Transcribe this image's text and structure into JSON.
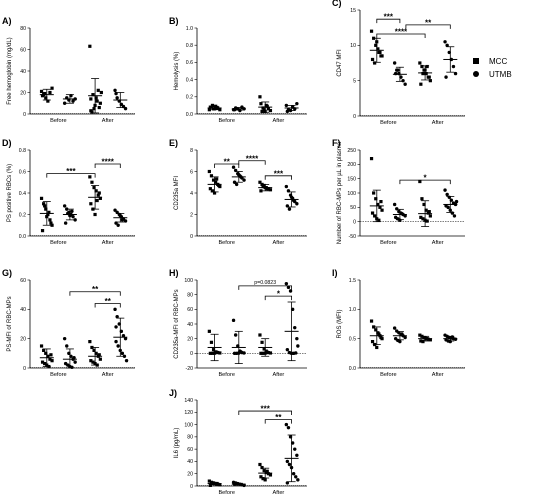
{
  "legend": {
    "items": [
      {
        "label": "MCC",
        "marker": "square"
      },
      {
        "label": "UTMB",
        "marker": "circle"
      }
    ]
  },
  "chart_data": [
    {
      "panel": "A)",
      "type": "scatter",
      "ylabel": "Free hemoglobin (mg/dL)",
      "ylim": [
        0,
        80
      ],
      "yticks": [
        0,
        20,
        40,
        60,
        80
      ],
      "categories": [
        "Before",
        "After"
      ],
      "series": [
        {
          "name": "MCC",
          "marker": "square",
          "group": "Before",
          "mean": 18,
          "sd": 5,
          "points": [
            21,
            18,
            15,
            12,
            20,
            24,
            17,
            19
          ]
        },
        {
          "name": "UTMB",
          "marker": "circle",
          "group": "Before",
          "mean": 14,
          "sd": 4,
          "points": [
            10,
            15,
            13,
            17,
            12,
            14
          ]
        },
        {
          "name": "MCC",
          "marker": "square",
          "group": "After",
          "mean": 17,
          "sd": 16,
          "points": [
            63,
            2,
            5,
            15,
            22,
            10,
            3,
            18,
            8,
            12,
            6,
            20,
            14
          ]
        },
        {
          "name": "UTMB",
          "marker": "circle",
          "group": "After",
          "mean": 13,
          "sd": 7,
          "points": [
            22,
            15,
            12,
            9,
            7,
            5,
            19
          ]
        }
      ],
      "comparisons": []
    },
    {
      "panel": "B)",
      "type": "scatter",
      "ylabel": "Hemolysis (%)",
      "ylim": [
        0,
        1
      ],
      "yticks": [
        0,
        0.2,
        0.4,
        0.6,
        0.8,
        1.0
      ],
      "ytick_labels": [
        "0.0",
        "0.2",
        "0.4",
        "0.6",
        "0.8",
        "1.0"
      ],
      "categories": [
        "Before",
        "After"
      ],
      "series": [
        {
          "name": "MCC",
          "marker": "square",
          "group": "Before",
          "mean": 0.07,
          "sd": 0.02,
          "points": [
            0.05,
            0.08,
            0.06,
            0.09,
            0.07,
            0.05,
            0.08,
            0.1,
            0.06,
            0.07
          ]
        },
        {
          "name": "UTMB",
          "marker": "circle",
          "group": "Before",
          "mean": 0.06,
          "sd": 0.015,
          "points": [
            0.05,
            0.07,
            0.06,
            0.04,
            0.08,
            0.06,
            0.05
          ]
        },
        {
          "name": "MCC",
          "marker": "square",
          "group": "After",
          "mean": 0.08,
          "sd": 0.06,
          "points": [
            0.2,
            0.03,
            0.05,
            0.1,
            0.06,
            0.04,
            0.12,
            0.07,
            0.03,
            0.09
          ]
        },
        {
          "name": "UTMB",
          "marker": "circle",
          "group": "After",
          "mean": 0.07,
          "sd": 0.03,
          "points": [
            0.1,
            0.05,
            0.04,
            0.08,
            0.06,
            0.12,
            0.03
          ]
        }
      ],
      "comparisons": []
    },
    {
      "panel": "C)",
      "type": "scatter",
      "ylabel": "CD47 MFI",
      "ylim": [
        0,
        15
      ],
      "yticks": [
        0,
        5,
        10,
        15
      ],
      "categories": [
        "Before",
        "After"
      ],
      "series": [
        {
          "name": "MCC",
          "marker": "square",
          "group": "Before",
          "mean": 9.3,
          "sd": 1.7,
          "points": [
            12,
            11,
            10,
            9.5,
            9,
            8.5,
            8,
            7.5,
            10.5,
            9,
            8.5
          ]
        },
        {
          "name": "UTMB",
          "marker": "circle",
          "group": "Before",
          "mean": 5.9,
          "sd": 1,
          "points": [
            7.5,
            6.5,
            6,
            5.5,
            5,
            4.5,
            6,
            6.5
          ]
        },
        {
          "name": "MCC",
          "marker": "square",
          "group": "After",
          "mean": 6.1,
          "sd": 1,
          "points": [
            7.5,
            7,
            6.5,
            6,
            5.5,
            5,
            4.5,
            6,
            6.5,
            7,
            5.5
          ]
        },
        {
          "name": "UTMB",
          "marker": "circle",
          "group": "After",
          "mean": 8,
          "sd": 1.8,
          "points": [
            10.5,
            10,
            9,
            8,
            7,
            6,
            5.5
          ]
        }
      ],
      "comparisons": [
        {
          "from": 0,
          "to": 1,
          "label": "***",
          "y": 13.7
        },
        {
          "from": 0,
          "to": 2,
          "label": "****",
          "y": 11.6
        },
        {
          "from": 1.15,
          "to": 3,
          "label": "**",
          "y": 12.9
        }
      ]
    },
    {
      "panel": "D)",
      "type": "scatter",
      "ylabel": "PS positive RBCs (%)",
      "ylim": [
        0,
        0.8
      ],
      "yticks": [
        0,
        0.2,
        0.4,
        0.6,
        0.8
      ],
      "ytick_labels": [
        "0.0",
        "0.2",
        "0.4",
        "0.6",
        "0.8"
      ],
      "categories": [
        "Before",
        "After"
      ],
      "series": [
        {
          "name": "MCC",
          "marker": "square",
          "group": "Before",
          "mean": 0.21,
          "sd": 0.11,
          "points": [
            0.35,
            0.3,
            0.25,
            0.2,
            0.15,
            0.1,
            0.05,
            0.28,
            0.18,
            0.22,
            0.12
          ]
        },
        {
          "name": "UTMB",
          "marker": "circle",
          "group": "Before",
          "mean": 0.2,
          "sd": 0.05,
          "points": [
            0.28,
            0.25,
            0.22,
            0.2,
            0.18,
            0.15,
            0.12,
            0.21,
            0.19,
            0.23
          ]
        },
        {
          "name": "MCC",
          "marker": "square",
          "group": "After",
          "mean": 0.36,
          "sd": 0.11,
          "points": [
            0.55,
            0.5,
            0.45,
            0.42,
            0.38,
            0.35,
            0.3,
            0.25,
            0.2,
            0.33,
            0.4
          ]
        },
        {
          "name": "UTMB",
          "marker": "circle",
          "group": "After",
          "mean": 0.17,
          "sd": 0.04,
          "points": [
            0.24,
            0.22,
            0.2,
            0.18,
            0.16,
            0.14,
            0.12,
            0.1,
            0.19,
            0.15
          ]
        }
      ],
      "comparisons": [
        {
          "from": 0,
          "to": 2,
          "label": "***",
          "y": 0.58
        },
        {
          "from": 2,
          "to": 3,
          "label": "****",
          "y": 0.67
        }
      ]
    },
    {
      "panel": "E)",
      "type": "scatter",
      "ylabel": "CD235a MFI",
      "ylim": [
        0,
        8
      ],
      "yticks": [
        0,
        2,
        4,
        6,
        8
      ],
      "categories": [
        "Before",
        "After"
      ],
      "series": [
        {
          "name": "MCC",
          "marker": "square",
          "group": "Before",
          "mean": 4.8,
          "sd": 0.7,
          "points": [
            6,
            5.6,
            5.2,
            5,
            4.8,
            4.6,
            4.4,
            4.2,
            4,
            5.3,
            4.7
          ]
        },
        {
          "name": "UTMB",
          "marker": "circle",
          "group": "Before",
          "mean": 5.5,
          "sd": 0.5,
          "points": [
            6.4,
            6.1,
            5.8,
            5.6,
            5.4,
            5.2,
            5,
            4.8,
            5.7,
            5.5
          ]
        },
        {
          "name": "MCC",
          "marker": "square",
          "group": "After",
          "mean": 4.5,
          "sd": 0.3,
          "points": [
            5,
            4.8,
            4.7,
            4.5,
            4.4,
            4.3,
            4.2,
            4.6,
            4.5,
            4.4
          ]
        },
        {
          "name": "UTMB",
          "marker": "circle",
          "group": "After",
          "mean": 3.4,
          "sd": 0.7,
          "points": [
            4.6,
            4.2,
            3.8,
            3.5,
            3.2,
            3,
            2.8,
            2.5,
            3.6,
            3.3
          ]
        }
      ],
      "comparisons": [
        {
          "from": 0,
          "to": 1,
          "label": "**",
          "y": 6.7
        },
        {
          "from": 1,
          "to": 2,
          "label": "****",
          "y": 7.0
        },
        {
          "from": 2,
          "to": 3,
          "label": "***",
          "y": 5.6
        }
      ]
    },
    {
      "panel": "F)",
      "type": "scatter",
      "ylabel": "Number of RBC-MPs per µL in plasma",
      "ylim": [
        -50,
        250
      ],
      "yticks": [
        -50,
        0,
        50,
        100,
        150,
        200,
        250
      ],
      "categories": [
        "Before",
        "After"
      ],
      "series": [
        {
          "name": "MCC",
          "marker": "square",
          "group": "Before",
          "mean": 55,
          "sd": 55,
          "points": [
            220,
            100,
            80,
            60,
            50,
            40,
            30,
            20,
            10,
            5,
            70
          ]
        },
        {
          "name": "UTMB",
          "marker": "circle",
          "group": "Before",
          "mean": 25,
          "sd": 18,
          "points": [
            60,
            45,
            35,
            30,
            25,
            20,
            15,
            10,
            5,
            28
          ]
        },
        {
          "name": "MCC",
          "marker": "square",
          "group": "After",
          "mean": 28,
          "sd": 45,
          "points": [
            140,
            80,
            60,
            40,
            30,
            20,
            15,
            10,
            5,
            2,
            35
          ]
        },
        {
          "name": "UTMB",
          "marker": "circle",
          "group": "After",
          "mean": 60,
          "sd": 28,
          "points": [
            110,
            95,
            85,
            75,
            65,
            60,
            55,
            50,
            40,
            30,
            20,
            70
          ]
        }
      ],
      "comparisons": [
        {
          "from": 1,
          "to": 3,
          "label": "*",
          "y": 145
        }
      ]
    },
    {
      "panel": "G)",
      "type": "scatter",
      "ylabel": "PS-MFI of RBC-MPs",
      "ylim": [
        0,
        60
      ],
      "yticks": [
        0,
        20,
        40,
        60
      ],
      "categories": [
        "Before",
        "After"
      ],
      "series": [
        {
          "name": "MCC",
          "marker": "square",
          "group": "Before",
          "mean": 7,
          "sd": 6,
          "points": [
            15,
            12,
            10,
            8,
            6,
            5,
            4,
            3,
            2,
            1,
            9
          ]
        },
        {
          "name": "UTMB",
          "marker": "circle",
          "group": "Before",
          "mean": 6,
          "sd": 7,
          "points": [
            20,
            15,
            10,
            8,
            6,
            4,
            3,
            2,
            1,
            0.5,
            7
          ]
        },
        {
          "name": "MCC",
          "marker": "square",
          "group": "After",
          "mean": 8,
          "sd": 6,
          "points": [
            18,
            14,
            12,
            10,
            8,
            6,
            5,
            4,
            3,
            2,
            9
          ]
        },
        {
          "name": "UTMB",
          "marker": "circle",
          "group": "After",
          "mean": 21,
          "sd": 13,
          "points": [
            40,
            35,
            30,
            25,
            22,
            20,
            18,
            15,
            12,
            10,
            8,
            5,
            28
          ]
        }
      ],
      "comparisons": [
        {
          "from": 1,
          "to": 3,
          "label": "**",
          "y": 52
        },
        {
          "from": 2,
          "to": 3,
          "label": "**",
          "y": 44
        }
      ]
    },
    {
      "panel": "H)",
      "type": "scatter",
      "ylabel": "CD235a-MFI of RBC-MPs",
      "ylim": [
        -20,
        100
      ],
      "yticks": [
        -20,
        0,
        20,
        40,
        60,
        80,
        100
      ],
      "categories": [
        "Before",
        "After"
      ],
      "series": [
        {
          "name": "MCC",
          "marker": "square",
          "group": "Before",
          "mean": 8,
          "sd": 18,
          "points": [
            30,
            15,
            5,
            2,
            1,
            0.5,
            0,
            0,
            0.2,
            1.5
          ]
        },
        {
          "name": "UTMB",
          "marker": "circle",
          "group": "Before",
          "mean": 8,
          "sd": 22,
          "points": [
            45,
            25,
            10,
            3,
            1,
            0.5,
            0,
            0,
            0.3,
            2
          ]
        },
        {
          "name": "MCC",
          "marker": "square",
          "group": "After",
          "mean": 8,
          "sd": 12,
          "points": [
            25,
            15,
            6,
            3,
            1,
            0.5,
            0,
            0,
            0.2,
            1.5
          ]
        },
        {
          "name": "UTMB",
          "marker": "circle",
          "group": "After",
          "mean": 30,
          "sd": 40,
          "points": [
            95,
            90,
            85,
            60,
            35,
            20,
            5,
            1,
            0,
            0,
            0.5,
            10
          ]
        }
      ],
      "comparisons": [
        {
          "from": 1,
          "to": 3,
          "label": "p=0.0823",
          "y": 92
        },
        {
          "from": 2,
          "to": 3,
          "label": "*",
          "y": 78
        }
      ]
    },
    {
      "panel": "I)",
      "type": "scatter",
      "ylabel": "ROS (MFI)",
      "ylim": [
        0,
        1.5
      ],
      "yticks": [
        0,
        0.5,
        1.0,
        1.5
      ],
      "ytick_labels": [
        "0.0",
        "0.5",
        "1.0",
        "1.5"
      ],
      "categories": [
        "Before",
        "After"
      ],
      "series": [
        {
          "name": "MCC",
          "marker": "square",
          "group": "Before",
          "mean": 0.55,
          "sd": 0.15,
          "points": [
            0.8,
            0.7,
            0.65,
            0.6,
            0.55,
            0.5,
            0.45,
            0.4,
            0.35,
            0.58,
            0.52
          ]
        },
        {
          "name": "UTMB",
          "marker": "circle",
          "group": "Before",
          "mean": 0.55,
          "sd": 0.07,
          "points": [
            0.68,
            0.63,
            0.6,
            0.57,
            0.55,
            0.52,
            0.5,
            0.47,
            0.45,
            0.58
          ]
        },
        {
          "name": "MCC",
          "marker": "square",
          "group": "After",
          "mean": 0.5,
          "sd": 0.04,
          "points": [
            0.56,
            0.54,
            0.52,
            0.5,
            0.49,
            0.48,
            0.46,
            0.45,
            0.51,
            0.5
          ]
        },
        {
          "name": "UTMB",
          "marker": "circle",
          "group": "After",
          "mean": 0.5,
          "sd": 0.04,
          "points": [
            0.56,
            0.54,
            0.52,
            0.51,
            0.5,
            0.49,
            0.48,
            0.46,
            0.45,
            0.53
          ]
        }
      ],
      "comparisons": []
    },
    {
      "panel": "J)",
      "type": "scatter",
      "ylabel": "IL6 (pg/mL)",
      "ylim": [
        0,
        140
      ],
      "yticks": [
        0,
        20,
        40,
        60,
        80,
        100,
        120,
        140
      ],
      "categories": [
        "Before",
        "After"
      ],
      "series": [
        {
          "name": "MCC",
          "marker": "square",
          "group": "Before",
          "mean": 4,
          "sd": 2,
          "points": [
            8,
            6,
            5,
            4,
            3,
            2,
            1,
            5,
            4,
            3
          ]
        },
        {
          "name": "UTMB",
          "marker": "circle",
          "group": "Before",
          "mean": 3,
          "sd": 1.5,
          "points": [
            6,
            5,
            4,
            3,
            2,
            1,
            3,
            4
          ]
        },
        {
          "name": "MCC",
          "marker": "square",
          "group": "After",
          "mean": 21,
          "sd": 8,
          "points": [
            35,
            30,
            25,
            22,
            20,
            18,
            15,
            12,
            10,
            24
          ]
        },
        {
          "name": "UTMB",
          "marker": "circle",
          "group": "After",
          "mean": 45,
          "sd": 38,
          "points": [
            100,
            95,
            80,
            70,
            60,
            50,
            40,
            35,
            30,
            20,
            15,
            10,
            5
          ]
        }
      ],
      "comparisons": [
        {
          "from": 1,
          "to": 3,
          "label": "***",
          "y": 122
        },
        {
          "from": 2,
          "to": 3,
          "label": "**",
          "y": 108
        }
      ]
    }
  ]
}
